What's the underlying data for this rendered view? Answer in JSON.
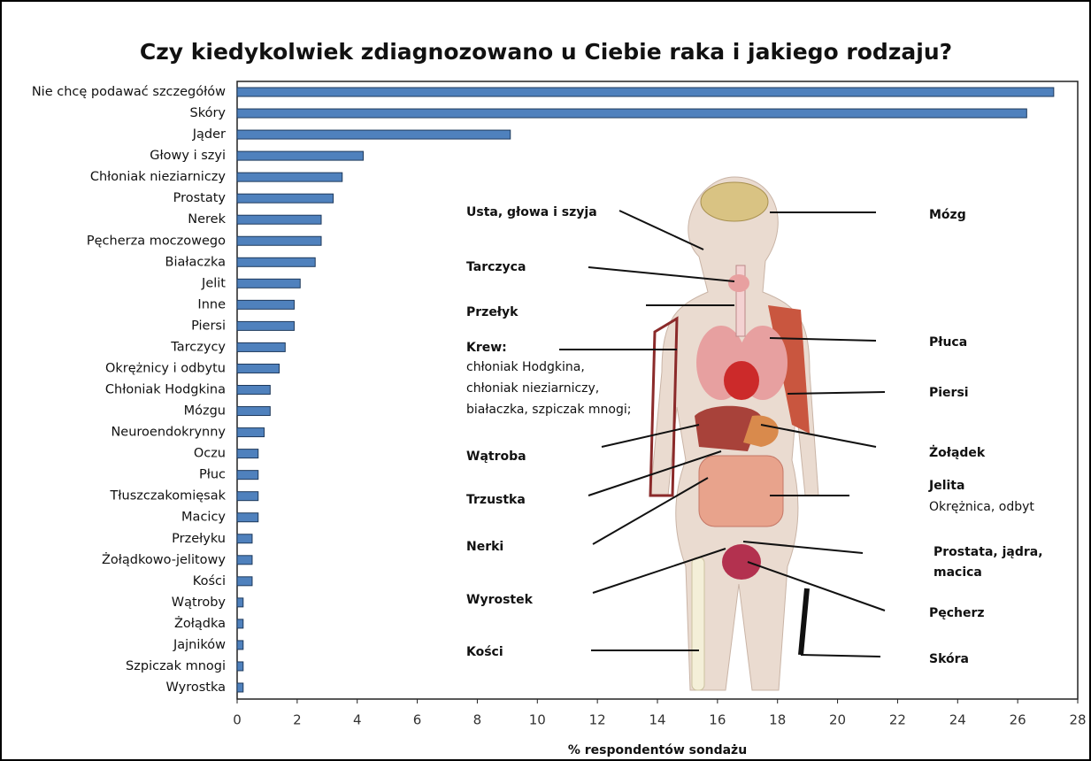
{
  "chart_data": {
    "type": "bar",
    "orientation": "horizontal",
    "title": "Czy kiedykolwiek zdiagnozowano u Ciebie raka i jakiego rodzaju?",
    "xlabel": "% respondentów sondażu",
    "categories": [
      "Nie chcę podawać szczegółów",
      "Skóry",
      "Jąder",
      "Głowy i szyi",
      "Chłoniak nieziarniczy",
      "Prostaty",
      "Nerek",
      "Pęcherza moczowego",
      "Białaczka",
      "Jelit",
      "Inne",
      "Piersi",
      "Tarczycy",
      "Okrężnicy i odbytu",
      "Chłoniak Hodgkina",
      "Mózgu",
      "Neuroendokrynny",
      "Oczu",
      "Płuc",
      "Tłuszczakomięsak",
      "Macicy",
      "Przełyku",
      "Żołądkowo-jelitowy",
      "Kości",
      "Wątroby",
      "Żołądka",
      "Jajników",
      "Szpiczak mnogi",
      "Wyrostka"
    ],
    "values": [
      27.2,
      26.3,
      9.1,
      4.2,
      3.5,
      3.2,
      2.8,
      2.8,
      2.6,
      2.1,
      1.9,
      1.9,
      1.6,
      1.4,
      1.1,
      1.1,
      0.9,
      0.7,
      0.7,
      0.7,
      0.7,
      0.5,
      0.5,
      0.5,
      0.2,
      0.2,
      0.2,
      0.2,
      0.2
    ],
    "color": "#4f81bd",
    "xlim": [
      0,
      28
    ],
    "xticks": [
      0,
      2,
      4,
      6,
      8,
      10,
      12,
      14,
      16,
      18,
      20,
      22,
      24,
      26,
      28
    ],
    "grid": false,
    "annotations": [
      "Usta, głowa i szyja",
      "Tarczyca",
      "Przełyk",
      "Krew:",
      "chłoniak Hodgkina,",
      "chłoniak nieziarniczy,",
      "białaczka, szpiczak mnogi;",
      "Wątroba",
      "Trzustka",
      "Nerki",
      "Wyrostek",
      "Kości",
      "Mózg",
      "Płuca",
      "Piersi",
      "Żołądek",
      "Jelita",
      "Okrężnica, odbyt",
      "Prostata, jądra,",
      "macica",
      "Pęcherz",
      "Skóra"
    ]
  }
}
